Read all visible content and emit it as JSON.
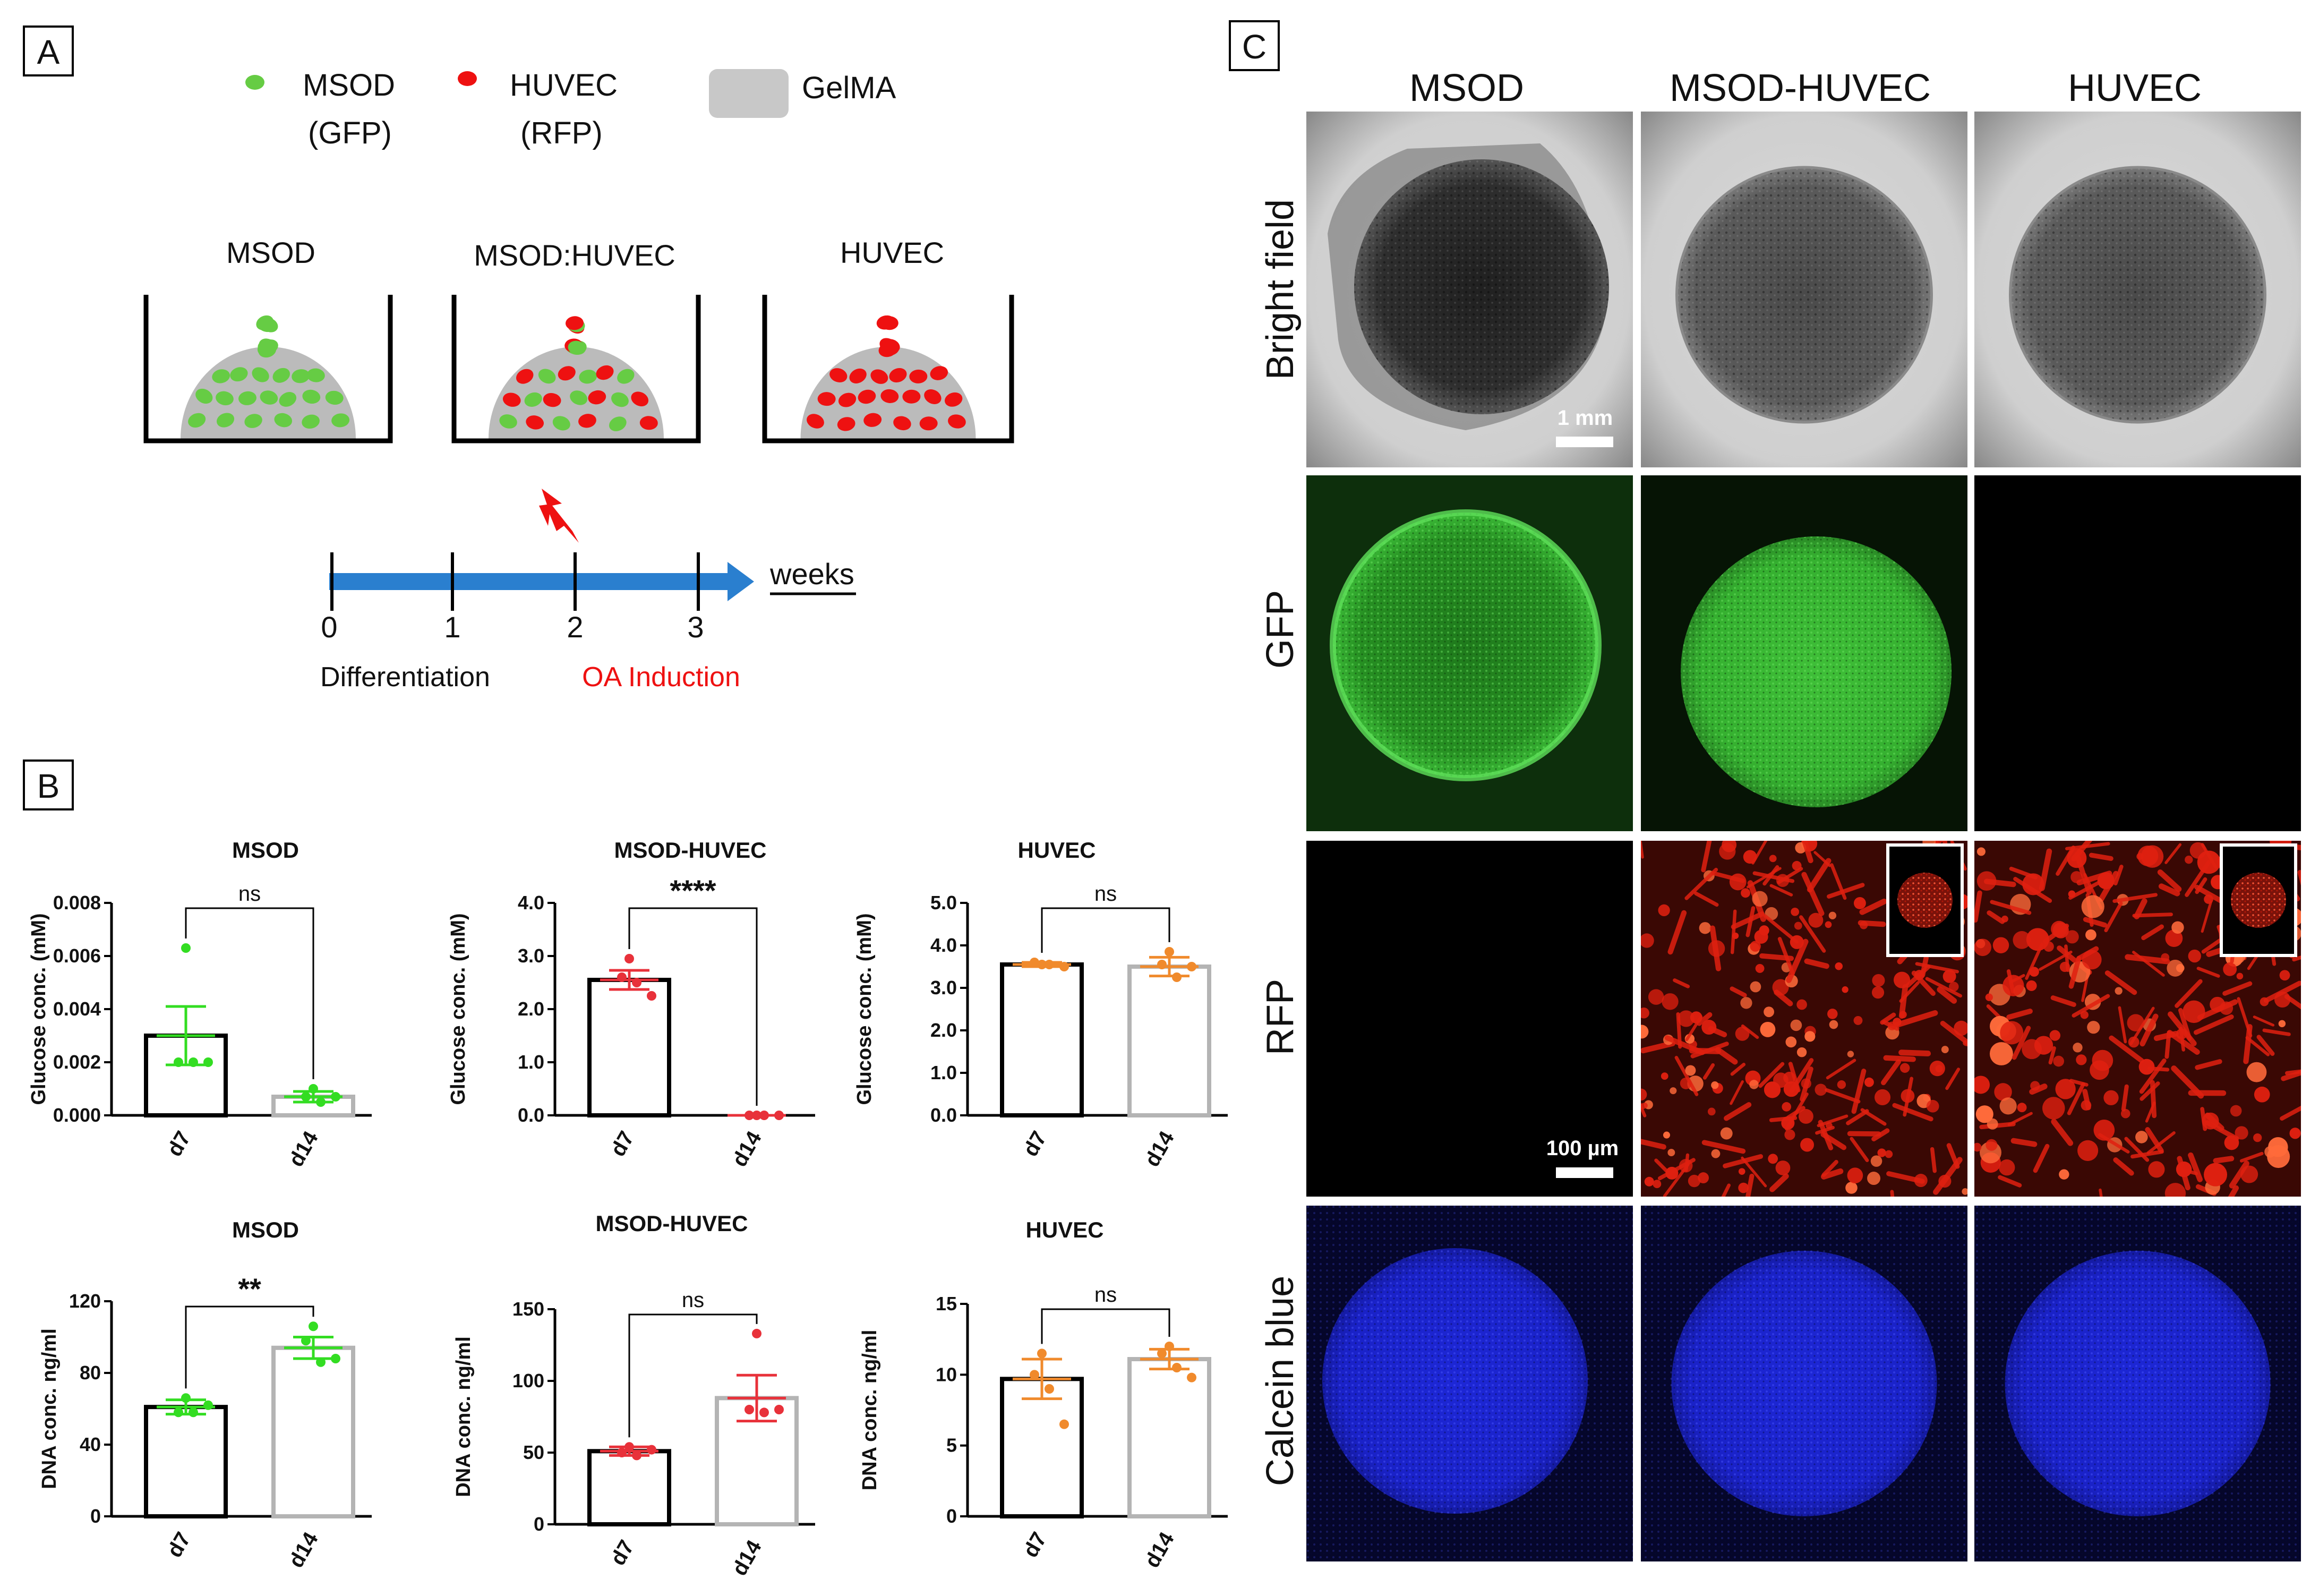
{
  "panel_A": {
    "letter": "A",
    "legend": [
      {
        "label_line1": "MSOD",
        "label_line2": "(GFP)",
        "color": "#66cc44",
        "marker": "green-dot"
      },
      {
        "label_line1": "HUVEC",
        "label_line2": "(RFP)",
        "color": "#ee1111",
        "marker": "red-dot"
      },
      {
        "label_line1": "GelMA",
        "label_line2": "",
        "color": "#c8c8c8",
        "marker": "grey-block"
      }
    ],
    "conditions": [
      "MSOD",
      "MSOD:HUVEC",
      "HUVEC"
    ],
    "timeline": {
      "ticks": [
        "0",
        "1",
        "2",
        "3"
      ],
      "unit": "weeks",
      "phase_differentiation": "Differentiation",
      "phase_induction": "OA Induction",
      "induction_color": "#ee1111",
      "arrow_color": "#2a7fcf",
      "lightning_icon": "lightning-bolt-icon"
    }
  },
  "panel_B": {
    "letter": "B",
    "chart_data": [
      {
        "type": "bar",
        "title": "MSOD",
        "ylabel": "Glucose conc. (mM)",
        "categories": [
          "d7",
          "d14"
        ],
        "values": [
          0.003,
          0.0007
        ],
        "error": [
          0.0011,
          0.0002
        ],
        "points": [
          [
            0.0063,
            0.002,
            0.002,
            0.002
          ],
          [
            0.001,
            0.0007,
            0.0005,
            0.0007
          ]
        ],
        "ylim": [
          0,
          0.008
        ],
        "yticks": [
          "0.000",
          "0.002",
          "0.004",
          "0.006",
          "0.008"
        ],
        "significance": "ns",
        "point_color": "#33dd22",
        "bar_edge_d7": "#000000",
        "bar_edge_d14": "#b4b4b4"
      },
      {
        "type": "bar",
        "title": "MSOD-HUVEC",
        "ylabel": "Glucose conc. (mM)",
        "categories": [
          "d7",
          "d14"
        ],
        "values": [
          2.55,
          0.0
        ],
        "error": [
          0.18,
          0.0
        ],
        "points": [
          [
            2.95,
            2.6,
            2.5,
            2.25
          ],
          [
            0.0,
            0.0,
            0.0,
            0.0
          ]
        ],
        "ylim": [
          0,
          4.0
        ],
        "yticks": [
          "0.0",
          "1.0",
          "2.0",
          "3.0",
          "4.0"
        ],
        "significance": "****",
        "point_color": "#e8313a",
        "bar_edge_d7": "#000000",
        "bar_edge_d14": "#b4b4b4"
      },
      {
        "type": "bar",
        "title": "HUVEC",
        "ylabel": "Glucose conc. (mM)",
        "categories": [
          "d7",
          "d14"
        ],
        "values": [
          3.55,
          3.5
        ],
        "error": [
          0.05,
          0.22
        ],
        "points": [
          [
            3.55,
            3.6,
            3.55,
            3.5
          ],
          [
            3.85,
            3.55,
            3.25,
            3.5
          ]
        ],
        "ylim": [
          0,
          5.0
        ],
        "yticks": [
          "0.0",
          "1.0",
          "2.0",
          "3.0",
          "4.0",
          "5.0"
        ],
        "significance": "ns",
        "point_color": "#f08a2c",
        "bar_edge_d7": "#000000",
        "bar_edge_d14": "#b4b4b4"
      },
      {
        "type": "bar",
        "title": "MSOD",
        "ylabel": "DNA conc. ng/ml",
        "categories": [
          "d7",
          "d14"
        ],
        "values": [
          61,
          94
        ],
        "error": [
          4,
          6
        ],
        "points": [
          [
            66,
            58,
            58,
            62
          ],
          [
            106,
            98,
            86,
            88
          ]
        ],
        "ylim": [
          0,
          120
        ],
        "yticks": [
          "0",
          "40",
          "80",
          "120"
        ],
        "significance": "**",
        "point_color": "#33dd22",
        "bar_edge_d7": "#000000",
        "bar_edge_d14": "#b4b4b4"
      },
      {
        "type": "bar",
        "title": "MSOD-HUVEC",
        "ylabel": "DNA conc. ng/ml",
        "categories": [
          "d7",
          "d14"
        ],
        "values": [
          51,
          88
        ],
        "error": [
          3,
          16
        ],
        "points": [
          [
            54,
            50,
            48,
            52
          ],
          [
            133,
            80,
            78,
            80
          ]
        ],
        "ylim": [
          0,
          150
        ],
        "yticks": [
          "0",
          "50",
          "100",
          "150"
        ],
        "significance": "ns",
        "point_color": "#e8313a",
        "bar_edge_d7": "#000000",
        "bar_edge_d14": "#b4b4b4"
      },
      {
        "type": "bar",
        "title": "HUVEC",
        "ylabel": "DNA conc. ng/ml",
        "categories": [
          "d7",
          "d14"
        ],
        "values": [
          9.7,
          11.1
        ],
        "error": [
          1.4,
          0.7
        ],
        "points": [
          [
            11.5,
            10.0,
            9.0,
            6.5
          ],
          [
            12.0,
            11.5,
            10.5,
            9.8
          ]
        ],
        "ylim": [
          0,
          15
        ],
        "yticks": [
          "0",
          "5",
          "10",
          "15"
        ],
        "significance": "ns",
        "point_color": "#f08a2c",
        "bar_edge_d7": "#000000",
        "bar_edge_d14": "#b4b4b4"
      }
    ]
  },
  "panel_C": {
    "letter": "C",
    "columns": [
      "MSOD",
      "MSOD-HUVEC",
      "HUVEC"
    ],
    "rows": [
      "Bright field",
      "GFP",
      "RFP",
      "Calcein blue"
    ],
    "scale_bar_1": "1 mm",
    "scale_bar_2": "100 µm",
    "channel_colors": {
      "gfp": "#2fa82a",
      "rfp": "#e02010",
      "calcein": "#1a22c8",
      "black": "#000000"
    }
  }
}
